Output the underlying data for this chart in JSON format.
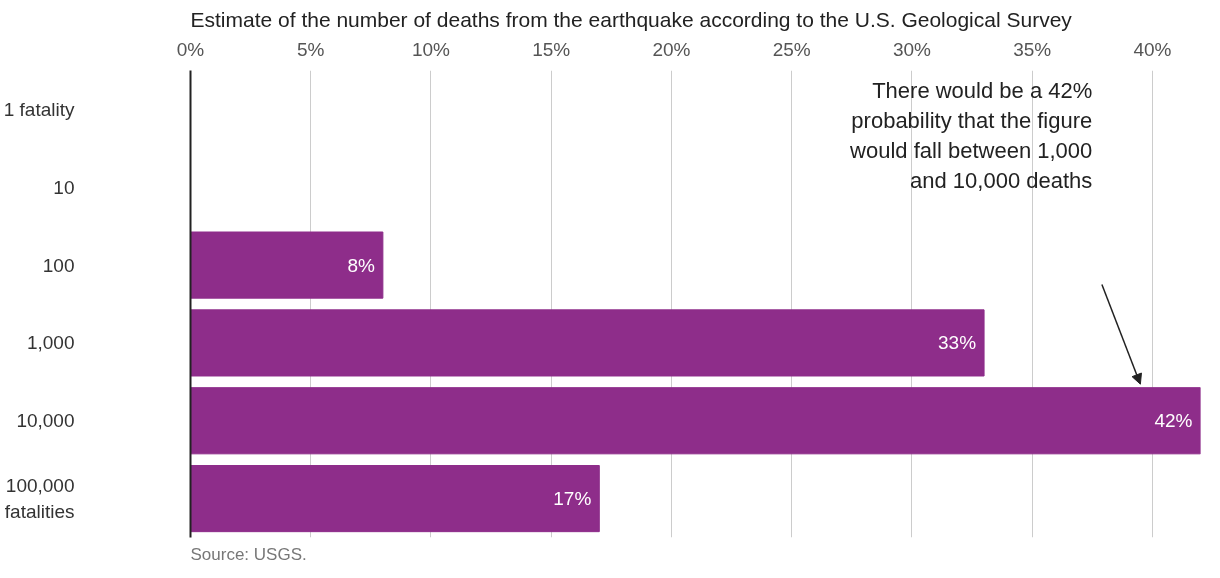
{
  "chart_data": {
    "type": "bar",
    "orientation": "horizontal",
    "title": "Estimate of the number of deaths from the earthquake according to the U.S. Geological Survey",
    "categories": [
      "1 fatality",
      "10",
      "100",
      "1,000",
      "10,000",
      "100,000 fatalities"
    ],
    "values": [
      0,
      0,
      8,
      33,
      42,
      17
    ],
    "value_labels": [
      null,
      null,
      "8%",
      "33%",
      "42%",
      "17%"
    ],
    "color": "#8e2d8a",
    "xlim": [
      0,
      42
    ],
    "xticks": [
      {
        "value": 0,
        "label": "0%"
      },
      {
        "value": 5,
        "label": "5%"
      },
      {
        "value": 10,
        "label": "10%"
      },
      {
        "value": 15,
        "label": "15%"
      },
      {
        "value": 20,
        "label": "20%"
      },
      {
        "value": 25,
        "label": "25%"
      },
      {
        "value": 30,
        "label": "30%"
      },
      {
        "value": 35,
        "label": "35%"
      },
      {
        "value": 40,
        "label": "40%"
      }
    ],
    "grid": "x",
    "annotations": [
      "There would be a 42% probability that the figure would fall between 1,000 and 10,000 deaths",
      "Source: USGS."
    ]
  }
}
